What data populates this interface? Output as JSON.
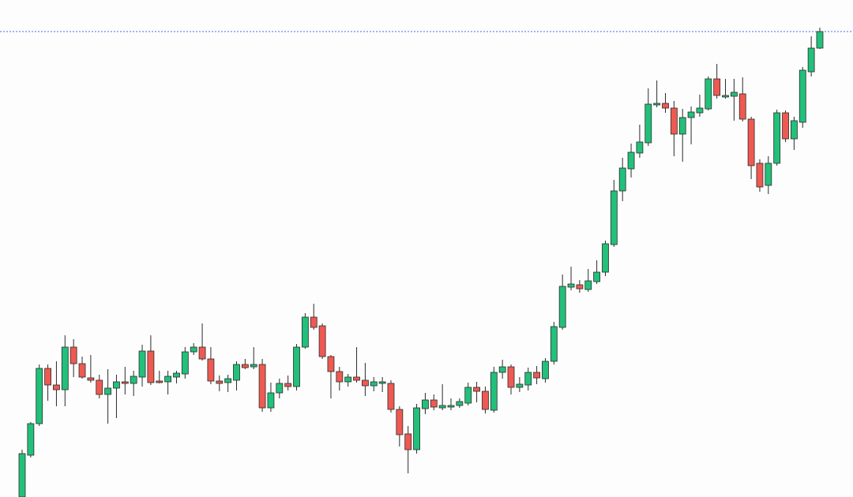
{
  "chart_data": {
    "type": "candlestick",
    "up_color": "#22c07a",
    "down_color": "#ee5a52",
    "outline_color": "#2b2b2b",
    "ylim": [
      0,
      630
    ],
    "price_line": {
      "value": 590,
      "color": "#3a6ee8"
    },
    "open": [
      0,
      53,
      93,
      163,
      142,
      136,
      190,
      169,
      151,
      148,
      130,
      138,
      146,
      144,
      152,
      185,
      147,
      146,
      152,
      156,
      184,
      190,
      175,
      147,
      145,
      148,
      168,
      165,
      168,
      113,
      132,
      144,
      140,
      190,
      228,
      217,
      178,
      159,
      146,
      152,
      148,
      141,
      144,
      144,
      111,
      80,
      60,
      112,
      123,
      113,
      114,
      116,
      119,
      139,
      134,
      110,
      158,
      165,
      139,
      142,
      158,
      150,
      172,
      215,
      266,
      269,
      263,
      273,
      285,
      320,
      388,
      416,
      436,
      449,
      497,
      499,
      493,
      460,
      481,
      487,
      492,
      530,
      507,
      508,
      511,
      479,
      423,
      395,
      423,
      487,
      454,
      475,
      539,
      569
    ],
    "high": [
      60,
      95,
      168,
      168,
      172,
      205,
      200,
      178,
      180,
      155,
      162,
      155,
      165,
      160,
      193,
      205,
      160,
      160,
      160,
      190,
      195,
      220,
      190,
      154,
      155,
      172,
      175,
      190,
      175,
      145,
      150,
      154,
      194,
      233,
      245,
      220,
      180,
      165,
      156,
      190,
      170,
      152,
      152,
      148,
      115,
      90,
      118,
      132,
      130,
      143,
      125,
      125,
      145,
      146,
      140,
      165,
      174,
      168,
      152,
      164,
      166,
      176,
      222,
      282,
      292,
      275,
      289,
      300,
      325,
      402,
      430,
      448,
      472,
      518,
      528,
      512,
      502,
      492,
      495,
      510,
      533,
      549,
      530,
      530,
      532,
      482,
      428,
      432,
      491,
      490,
      482,
      545,
      584,
      595
    ],
    "low": [
      0,
      50,
      90,
      122,
      115,
      115,
      152,
      150,
      145,
      125,
      93,
      100,
      130,
      128,
      140,
      142,
      144,
      130,
      144,
      150,
      180,
      173,
      143,
      134,
      133,
      135,
      162,
      162,
      108,
      108,
      125,
      135,
      135,
      188,
      212,
      175,
      125,
      135,
      140,
      145,
      128,
      134,
      133,
      107,
      64,
      30,
      55,
      105,
      110,
      110,
      110,
      113,
      116,
      120,
      106,
      107,
      150,
      130,
      133,
      135,
      143,
      145,
      168,
      212,
      262,
      259,
      260,
      270,
      280,
      317,
      375,
      405,
      430,
      445,
      494,
      487,
      432,
      425,
      447,
      482,
      490,
      505,
      505,
      477,
      476,
      403,
      387,
      384,
      420,
      450,
      440,
      468,
      533,
      568
    ],
    "close": [
      55,
      93,
      163,
      142,
      136,
      190,
      169,
      152,
      148,
      130,
      138,
      146,
      144,
      153,
      185,
      145,
      145,
      153,
      157,
      184,
      190,
      175,
      147,
      144,
      150,
      168,
      164,
      168,
      113,
      132,
      144,
      140,
      190,
      228,
      215,
      178,
      159,
      146,
      152,
      148,
      141,
      146,
      146,
      111,
      79,
      60,
      113,
      123,
      114,
      116,
      116,
      121,
      139,
      134,
      111,
      158,
      165,
      139,
      143,
      158,
      151,
      172,
      216,
      267,
      270,
      264,
      274,
      285,
      321,
      388,
      417,
      437,
      450,
      498,
      499,
      493,
      460,
      481,
      488,
      493,
      530,
      509,
      509,
      513,
      479,
      420,
      393,
      423,
      487,
      454,
      477,
      541,
      569,
      590
    ]
  }
}
